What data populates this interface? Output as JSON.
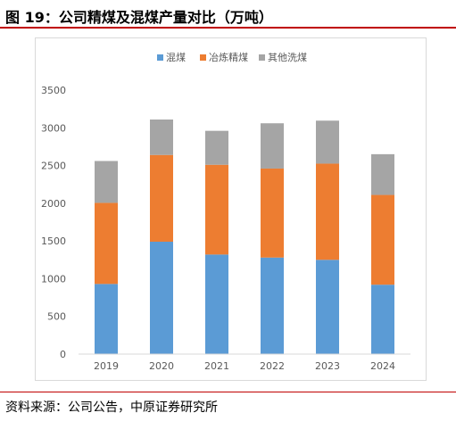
{
  "figure": {
    "title": "图 19：公司精煤及混煤产量对比（万吨）",
    "source": "资料来源：公司公告，中原证券研究所"
  },
  "chart_data": {
    "type": "bar",
    "stacked": true,
    "categories": [
      "2019",
      "2020",
      "2021",
      "2022",
      "2023",
      "2024"
    ],
    "series": [
      {
        "name": "混煤",
        "color": "#5b9bd5",
        "values": [
          930,
          1490,
          1320,
          1280,
          1250,
          920
        ]
      },
      {
        "name": "冶炼精煤",
        "color": "#ed7d31",
        "values": [
          1075,
          1150,
          1190,
          1180,
          1275,
          1190
        ]
      },
      {
        "name": "其他洗煤",
        "color": "#a5a5a5",
        "values": [
          555,
          470,
          450,
          600,
          570,
          540
        ]
      }
    ],
    "ylim": [
      0,
      3500
    ],
    "yticks": [
      "0",
      "500",
      "1000",
      "1500",
      "2000",
      "2500",
      "3000",
      "3500"
    ],
    "grid": false,
    "legend_position": "top"
  }
}
